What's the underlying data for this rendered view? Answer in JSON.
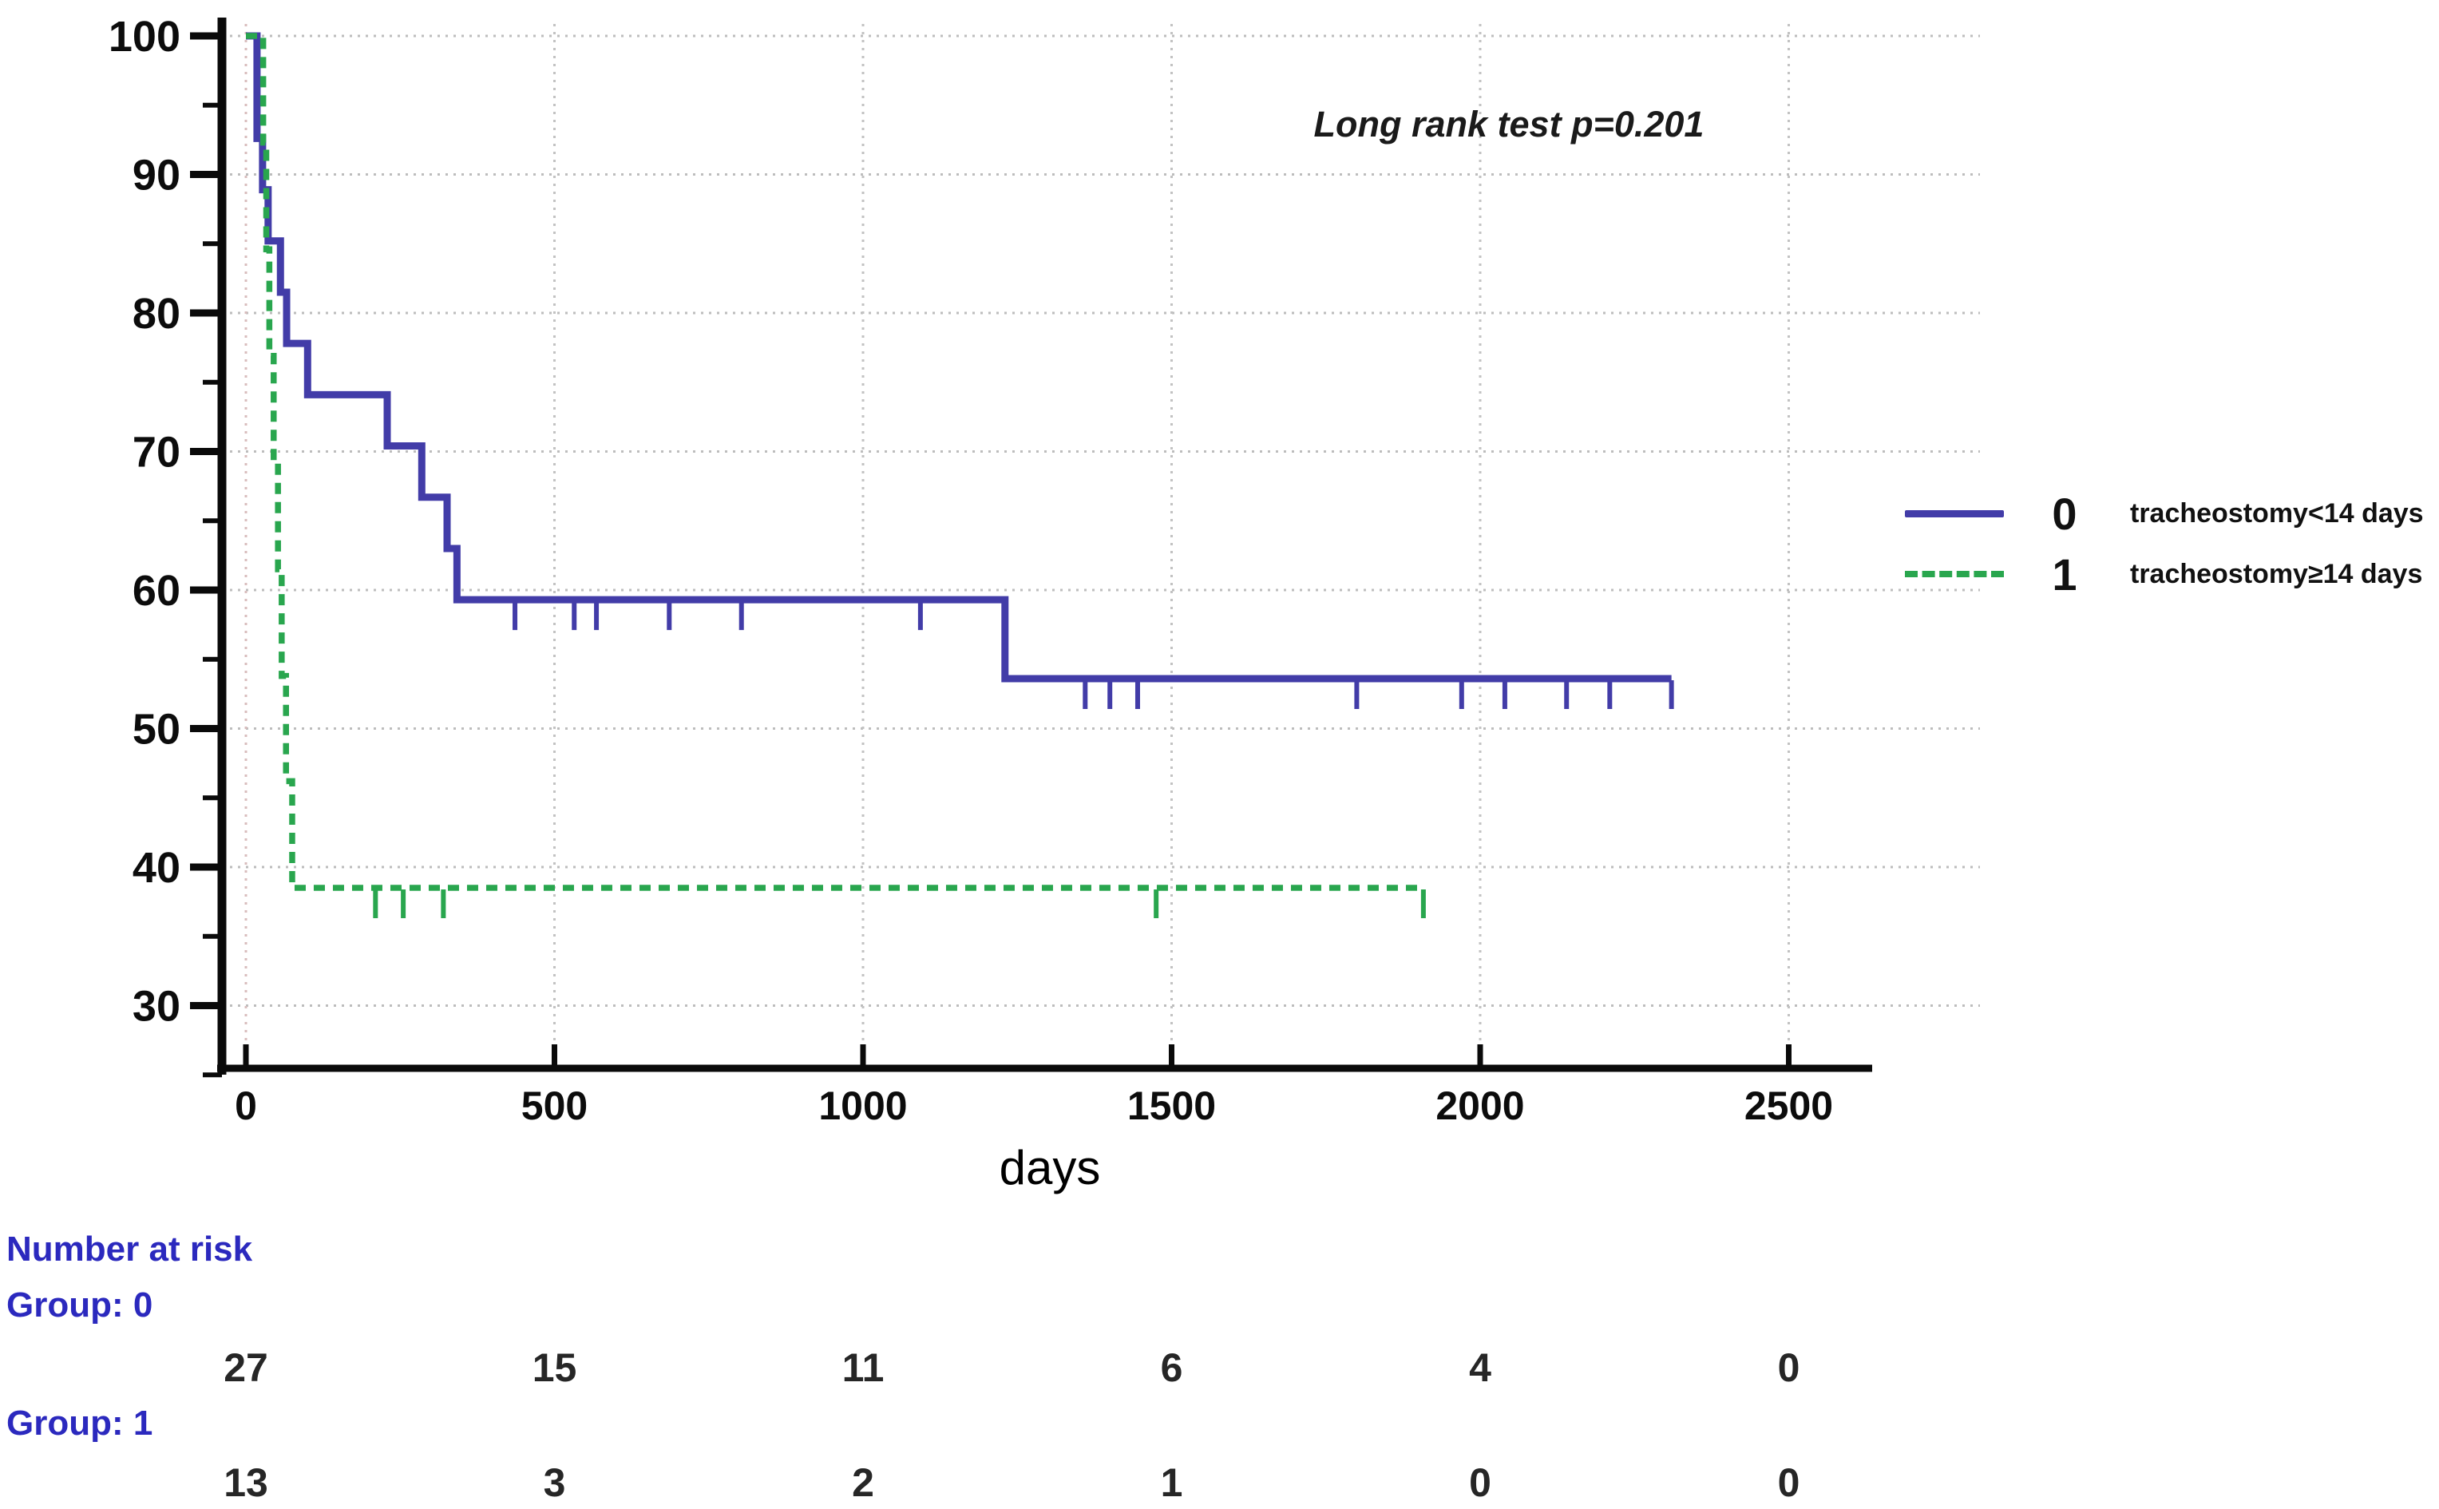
{
  "figure": {
    "annotation": "Long rank test p=0.201",
    "xlabel": "days"
  },
  "legend": {
    "items": [
      {
        "group": "0",
        "label": "tracheostomy<14 days",
        "color": "#423CA8",
        "style": "solid"
      },
      {
        "group": "1",
        "label": "tracheostomy≥14 days",
        "color": "#29A64E",
        "style": "dashed"
      }
    ]
  },
  "risk_table": {
    "title": "Number at risk",
    "time_points": [
      0,
      500,
      1000,
      1500,
      2000,
      2500
    ],
    "rows": [
      {
        "label": "Group: 0",
        "values": [
          "27",
          "15",
          "11",
          "6",
          "4",
          "0"
        ]
      },
      {
        "label": "Group: 1",
        "values": [
          "13",
          "3",
          "2",
          "1",
          "0",
          "0"
        ]
      }
    ]
  },
  "colors": {
    "curve_group0": "#423CA8",
    "curve_group1": "#29A64E",
    "risk_text_blue": "#2B29BE",
    "axis": "#0a0a0a",
    "grid": "#bdbdbd",
    "zero_gridline": "#d8bcbc"
  },
  "chart_data": {
    "type": "line",
    "subtype": "kaplan-meier-step",
    "title": "",
    "annotation": "Long rank test p=0.201",
    "xlabel": "days",
    "ylabel": "",
    "xlim": [
      0,
      2650
    ],
    "ylim": [
      26,
      100
    ],
    "x_ticks": [
      0,
      500,
      1000,
      1500,
      2000,
      2500
    ],
    "y_ticks": [
      30,
      40,
      50,
      60,
      70,
      80,
      90,
      100
    ],
    "y_minor_ticks": [
      25,
      35,
      45,
      55,
      65,
      75,
      85,
      95
    ],
    "grid": true,
    "legend_position": "right-outside",
    "series": [
      {
        "name": "0",
        "label": "tracheostomy<14 days",
        "color": "#423CA8",
        "style": "solid",
        "steps": [
          [
            0,
            100
          ],
          [
            18,
            92.6
          ],
          [
            27,
            88.9
          ],
          [
            36,
            85.2
          ],
          [
            56,
            81.5
          ],
          [
            66,
            77.8
          ],
          [
            100,
            74.1
          ],
          [
            229,
            70.4
          ],
          [
            285,
            66.7
          ],
          [
            326,
            63.0
          ],
          [
            342,
            59.3
          ],
          [
            1230,
            53.6
          ]
        ],
        "end_day": 2310,
        "censor_days": [
          436,
          532,
          568,
          686,
          803,
          1093,
          1360,
          1400,
          1445,
          1800,
          1970,
          2040,
          2140,
          2210,
          2310
        ]
      },
      {
        "name": "1",
        "label": "tracheostomy≥14 days",
        "color": "#29A64E",
        "style": "dashed",
        "steps": [
          [
            0,
            100
          ],
          [
            28,
            92.3
          ],
          [
            33,
            84.6
          ],
          [
            38,
            76.9
          ],
          [
            45,
            69.2
          ],
          [
            52,
            61.5
          ],
          [
            58,
            53.8
          ],
          [
            65,
            46.2
          ],
          [
            75,
            38.5
          ]
        ],
        "end_day": 1908,
        "censor_days": [
          210,
          255,
          320,
          1475,
          1908
        ]
      }
    ]
  }
}
